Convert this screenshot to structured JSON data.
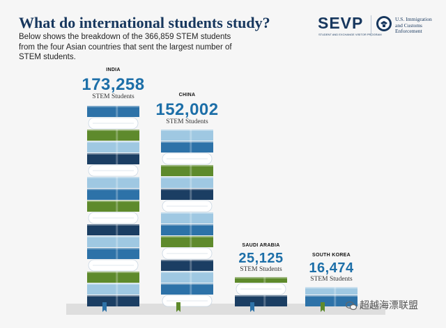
{
  "header": {
    "title": "What do international students study?",
    "subtitle": "Below shows the breakdown of the 366,859 STEM students from the four Asian countries that sent the largest number of STEM students.",
    "logo_text": "SEVP",
    "logo_subtext": "STUDENT AND EXCHANGE VISITOR PROGRAM",
    "agency_text": "U.S. Immigration and Customs Enforcement"
  },
  "chart_data": {
    "type": "bar",
    "title": "What do international students study?",
    "categories": [
      "INDIA",
      "CHINA",
      "SAUDI ARABIA",
      "SOUTH KOREA"
    ],
    "values": [
      173258,
      152002,
      25125,
      16474
    ],
    "value_labels": [
      "173,258",
      "152,002",
      "25,125",
      "16,474"
    ],
    "unit_label": "STEM Students",
    "xlabel": "",
    "ylabel": "",
    "grid": false,
    "legend": "none"
  },
  "colors": {
    "title": "#17375e",
    "value": "#1d6fa8",
    "book_dark_blue": "#1b3e63",
    "book_mid_blue": "#2d72a8",
    "book_light_blue": "#9fc8e2",
    "book_green": "#5e8a2c",
    "page": "#ffffff"
  },
  "watermark": "超越海漂联盟"
}
